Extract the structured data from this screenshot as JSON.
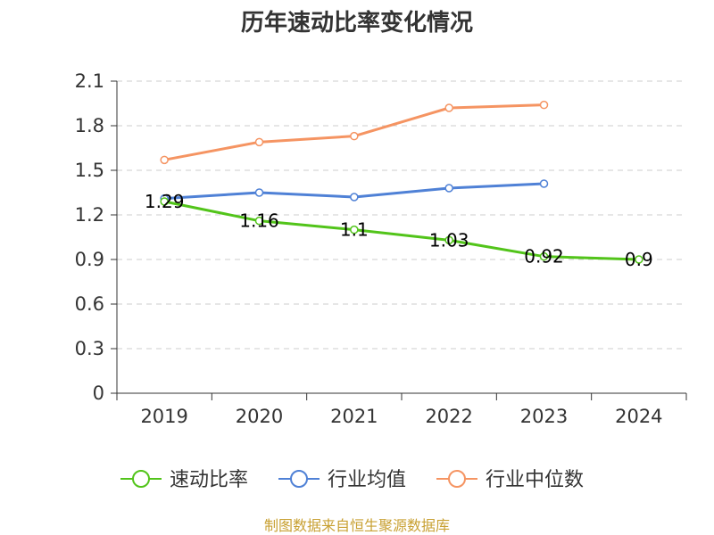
{
  "chart_data": {
    "type": "line",
    "title": "历年速动比率变化情况",
    "categories": [
      "2019",
      "2020",
      "2021",
      "2022",
      "2023",
      "2024"
    ],
    "ylim": [
      0,
      2.1
    ],
    "yticks": [
      "0",
      "0.3",
      "0.6",
      "0.9",
      "1.2",
      "1.5",
      "1.8",
      "2.1"
    ],
    "grid": true,
    "legend_position": "bottom",
    "series": [
      {
        "name": "速动比率",
        "color": "#52c41a",
        "values": [
          1.29,
          1.16,
          1.1,
          1.03,
          0.92,
          0.9
        ],
        "labels": [
          "1.29",
          "1.16",
          "1.1",
          "1.03",
          "0.92",
          "0.9"
        ]
      },
      {
        "name": "行业均值",
        "color": "#4f81d6",
        "values": [
          1.31,
          1.35,
          1.32,
          1.38,
          1.41,
          null
        ]
      },
      {
        "name": "行业中位数",
        "color": "#f59462",
        "values": [
          1.57,
          1.69,
          1.73,
          1.92,
          1.94,
          null
        ]
      }
    ]
  },
  "source_text": "制图数据来自恒生聚源数据库",
  "colors": {
    "source": "#c8a032",
    "axis": "#333333",
    "grid": "#cccccc"
  }
}
